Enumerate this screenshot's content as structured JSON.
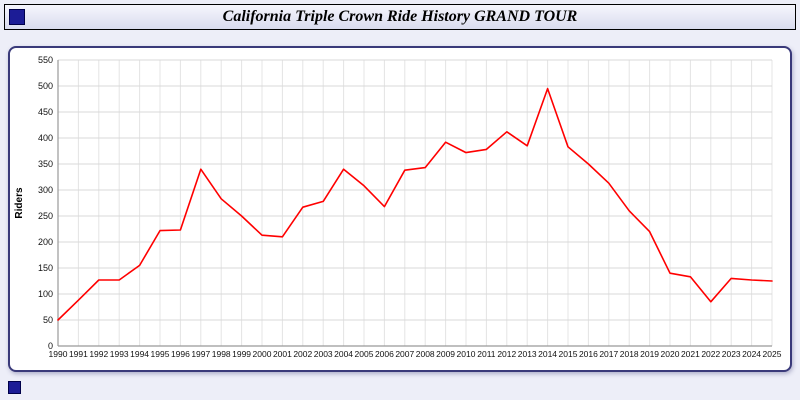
{
  "title": "California Triple Crown Ride History GRAND TOUR",
  "colors": {
    "line": "#ff0000",
    "panel_border": "#3a3a7a",
    "page_bg": "#edeef8",
    "grid": "#d9d9d9",
    "axis": "#999999",
    "tick_text": "#111111"
  },
  "chart_data": {
    "type": "line",
    "title": "California Triple Crown Ride History GRAND TOUR",
    "xlabel": "",
    "ylabel": "Riders",
    "ylim": [
      0,
      550
    ],
    "ytick_step": 50,
    "grid": true,
    "legend": false,
    "line_color": "#ff0000",
    "categories": [
      "1990",
      "1991",
      "1992",
      "1993",
      "1994",
      "1995",
      "1996",
      "1997",
      "1998",
      "1999",
      "2000",
      "2001",
      "2002",
      "2003",
      "2004",
      "2005",
      "2006",
      "2007",
      "2008",
      "2009",
      "2010",
      "2011",
      "2012",
      "2013",
      "2014",
      "2015",
      "2016",
      "2017",
      "2018",
      "2019",
      "2020",
      "2021",
      "2022",
      "2023",
      "2024",
      "2025"
    ],
    "values": [
      50,
      88,
      127,
      127,
      155,
      222,
      223,
      340,
      283,
      250,
      213,
      210,
      267,
      278,
      340,
      308,
      268,
      338,
      343,
      392,
      372,
      378,
      412,
      385,
      495,
      383,
      350,
      313,
      260,
      220,
      140,
      133,
      85,
      130,
      127,
      125
    ]
  }
}
